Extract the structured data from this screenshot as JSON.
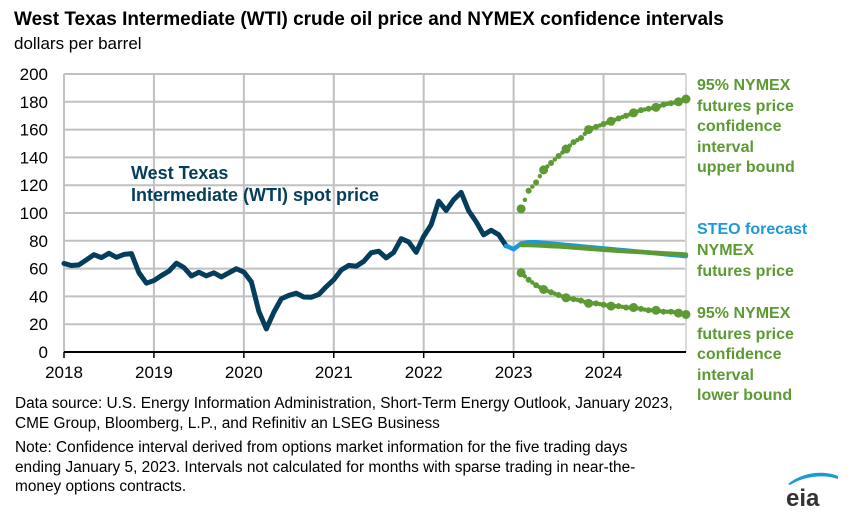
{
  "header": {
    "title": "West Texas Intermediate (WTI) crude oil price and NYMEX confidence intervals",
    "subtitle": "dollars per barrel"
  },
  "annotations": {
    "wti_line1": "West Texas",
    "wti_line2": "Intermediate (WTI) spot price",
    "upper": [
      "95% NYMEX",
      "futures price",
      "confidence",
      "interval",
      "upper bound"
    ],
    "steo": "STEO forecast",
    "nymex": [
      "NYMEX",
      "futures price"
    ],
    "lower": [
      "95% NYMEX",
      "futures price",
      "confidence",
      "interval",
      "lower bound"
    ]
  },
  "footer": {
    "source_line1": "Data source: U.S. Energy Information Administration, Short-Term Energy Outlook, January 2023,",
    "source_line2": "CME Group, Bloomberg, L.P., and Refinitiv an LSEG Business",
    "note_line1": "Note: Confidence interval derived from options market information for the five trading days",
    "note_line2": "ending January 5, 2023. Intervals not calculated for months with sparse trading in near-the-",
    "note_line3": "money options contracts."
  },
  "logo": {
    "text": "eia"
  },
  "colors": {
    "wti": "#053e5c",
    "steo": "#1b9ad8",
    "nymex": "#5c9a34",
    "grid": "#c0c0c0"
  },
  "chart_data": {
    "type": "line",
    "title": "West Texas Intermediate (WTI) crude oil price and NYMEX confidence intervals",
    "ylabel": "dollars per barrel",
    "xlabel": "",
    "ylim": [
      0,
      200
    ],
    "yticks": [
      0,
      20,
      40,
      60,
      80,
      100,
      120,
      140,
      160,
      180,
      200
    ],
    "xlim": [
      2018,
      2024.917
    ],
    "xticks": [
      "2018",
      "2019",
      "2020",
      "2021",
      "2022",
      "2023",
      "2024"
    ],
    "grid": true,
    "series": [
      {
        "name": "West Texas Intermediate (WTI) spot price",
        "start": "2018-01",
        "frequency": "monthly",
        "values": [
          63.7,
          62.2,
          62.7,
          66.3,
          70.0,
          67.9,
          71.0,
          68.1,
          70.2,
          70.8,
          57.0,
          49.5,
          51.4,
          55.0,
          58.2,
          63.9,
          60.8,
          54.7,
          57.4,
          54.8,
          57.0,
          54.0,
          57.0,
          59.9,
          57.5,
          50.5,
          29.2,
          16.6,
          28.6,
          38.3,
          40.7,
          42.3,
          39.6,
          39.4,
          41.4,
          47.0,
          52.0,
          59.0,
          62.3,
          61.7,
          65.2,
          71.4,
          72.5,
          67.7,
          71.7,
          81.5,
          79.2,
          71.7,
          83.2,
          91.6,
          108.5,
          101.8,
          109.6,
          114.8,
          101.6,
          93.7,
          84.3,
          87.6,
          84.4,
          76.4
        ]
      },
      {
        "name": "STEO forecast",
        "start": "2022-12",
        "frequency": "monthly",
        "values": [
          76.4,
          74.0,
          78.0,
          79.0,
          79.0,
          78.5,
          78.0,
          77.5,
          77.0,
          76.5,
          76.0,
          75.5,
          75.0,
          74.5,
          74.0,
          73.5,
          73.0,
          72.5,
          72.0,
          71.5,
          71.0,
          70.5,
          70.0,
          69.5,
          69.0
        ]
      },
      {
        "name": "NYMEX futures price",
        "start": "2023-02",
        "frequency": "monthly",
        "values": [
          77.0,
          77.0,
          76.8,
          76.5,
          76.2,
          76.0,
          75.6,
          75.2,
          74.8,
          74.4,
          74.0,
          73.6,
          73.2,
          72.8,
          72.5,
          72.2,
          71.9,
          71.6,
          71.3,
          71.0,
          70.7,
          70.4,
          70.1
        ]
      },
      {
        "name": "95% NYMEX futures price confidence interval upper bound",
        "start": "2023-02",
        "frequency": "monthly",
        "values": [
          103,
          116,
          122,
          131,
          136,
          141,
          146,
          151,
          154,
          160,
          162,
          164,
          166,
          168,
          170,
          172,
          174,
          175,
          176,
          178,
          179,
          180,
          182
        ]
      },
      {
        "name": "95% NYMEX futures price confidence interval lower bound",
        "start": "2023-02",
        "frequency": "monthly",
        "values": [
          57,
          52,
          48,
          45,
          43,
          41,
          39,
          38,
          37,
          35,
          35,
          34,
          33,
          33,
          32,
          32,
          31,
          30,
          30,
          29,
          29,
          28,
          27
        ]
      }
    ]
  }
}
